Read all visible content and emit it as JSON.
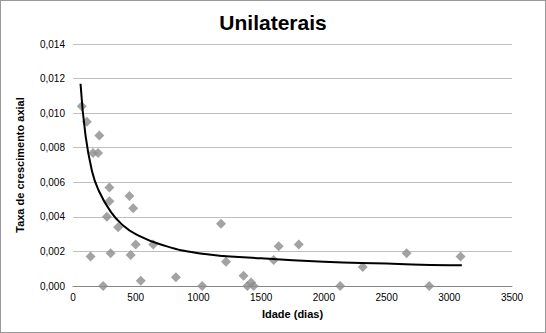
{
  "chart_data": {
    "type": "scatter",
    "title": "Unilaterais",
    "x_label": "Idade (dias)",
    "y_label": "Taxa de crescimento axial",
    "xlim": [
      0,
      3500
    ],
    "xticks": [
      0,
      500,
      1000,
      1500,
      2000,
      2500,
      3000,
      3500
    ],
    "ylim": [
      0,
      0.014
    ],
    "yticks": [
      {
        "value": 0,
        "label": "0,000"
      },
      {
        "value": 0.002,
        "label": "0,002"
      },
      {
        "value": 0.004,
        "label": "0,004"
      },
      {
        "value": 0.006,
        "label": "0,006"
      },
      {
        "value": 0.008,
        "label": "0,008"
      },
      {
        "value": 0.01,
        "label": "0,010"
      },
      {
        "value": 0.012,
        "label": "0,012"
      },
      {
        "value": 0.014,
        "label": "0,014"
      }
    ],
    "grid": "y",
    "series": [
      {
        "type": "scatter",
        "color": "#8c8c8c",
        "marker": "diamond",
        "x": [
          70,
          110,
          140,
          160,
          200,
          210,
          240,
          270,
          290,
          290,
          300,
          360,
          450,
          460,
          480,
          500,
          540,
          640,
          820,
          1030,
          1180,
          1220,
          1360,
          1390,
          1420,
          1440,
          1600,
          1640,
          1800,
          2130,
          2310,
          2660,
          2840,
          3090
        ],
        "values": [
          0.0104,
          0.0095,
          0.0017,
          0.0077,
          0.0077,
          0.0087,
          0.0,
          0.004,
          0.0057,
          0.0049,
          0.0019,
          0.0034,
          0.0052,
          0.0018,
          0.0045,
          0.0024,
          0.0003,
          0.0024,
          0.0005,
          0.0,
          0.0036,
          0.0014,
          0.0006,
          0.0,
          0.0002,
          0.0,
          0.0015,
          0.0023,
          0.0024,
          0.0,
          0.0011,
          0.0019,
          0.0,
          0.0017
        ]
      },
      {
        "type": "line",
        "color": "#000000",
        "line_style": "solid",
        "x": [
          60,
          100,
          150,
          200,
          300,
          400,
          500,
          700,
          1000,
          1500,
          2000,
          2500,
          3000,
          3100
        ],
        "values": [
          0.0117,
          0.0087,
          0.0067,
          0.0056,
          0.0043,
          0.0035,
          0.003,
          0.0024,
          0.0019,
          0.0016,
          0.0014,
          0.0013,
          0.0012,
          0.0012
        ]
      }
    ]
  }
}
